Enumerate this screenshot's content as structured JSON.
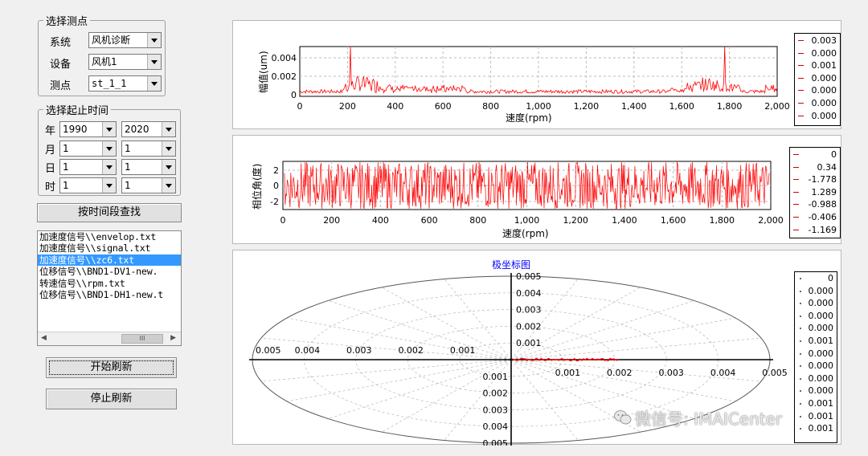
{
  "select_point": {
    "title": "选择测点",
    "system_label": "系统",
    "system_value": "风机诊断",
    "device_label": "设备",
    "device_value": "风机1",
    "point_label": "测点",
    "point_value": "st_1_1"
  },
  "time_range": {
    "title": "选择起止时间",
    "rows": [
      {
        "label": "年",
        "start": "1990",
        "end": "2020"
      },
      {
        "label": "月",
        "start": "1",
        "end": "1"
      },
      {
        "label": "日",
        "start": "1",
        "end": "1"
      },
      {
        "label": "时",
        "start": "1",
        "end": "1"
      }
    ]
  },
  "query_button": "按时间段查找",
  "files": [
    "加速度信号\\\\envelop.txt",
    "加速度信号\\\\signal.txt",
    "加速度信号\\\\zc6.txt",
    "位移信号\\\\BND1-DV1-new.",
    "转速信号\\\\rpm.txt",
    "位移信号\\\\BND1-DH1-new.t"
  ],
  "selected_file_index": 2,
  "scrollbar_thumb": "III",
  "start_button": "开始刷新",
  "stop_button": "停止刷新",
  "amp_chart": {
    "ylabel": "幅值(um)",
    "xlabel": "速度(rpm)",
    "y_ticks": [
      "0.004",
      "0.002",
      "0"
    ],
    "x_ticks": [
      "0",
      "200",
      "400",
      "600",
      "800",
      "1,000",
      "1,200",
      "1,400",
      "1,600",
      "1,800",
      "2,000"
    ],
    "legend": [
      "0.003",
      "0.000",
      "0.001",
      "0.000",
      "0.000",
      "0.000",
      "0.000"
    ],
    "line_color": "#ff0000"
  },
  "phase_chart": {
    "ylabel": "相位角(度)",
    "xlabel": "速度(rpm)",
    "y_ticks": [
      "2",
      "0",
      "-2"
    ],
    "x_ticks": [
      "0",
      "200",
      "400",
      "600",
      "800",
      "1,000",
      "1,200",
      "1,400",
      "1,600",
      "1,800",
      "2,000"
    ],
    "legend": [
      "0",
      "0.34",
      "-1.778",
      "1.289",
      "-0.988",
      "-0.406",
      "-1.169"
    ],
    "line_color": "#ff0000"
  },
  "polar_chart": {
    "title": "极坐标图",
    "x_tick_labels": [
      "0.005",
      "0.004",
      "0.003",
      "0.002",
      "0.001",
      "0.001",
      "0.002",
      "0.003",
      "0.004",
      "0.005"
    ],
    "y_up_labels": [
      "0.005",
      "0.004",
      "0.003",
      "0.002",
      "0.001"
    ],
    "y_down_labels": [
      "0.001",
      "0.002",
      "0.003",
      "0.004",
      "0.005"
    ],
    "legend": [
      "0",
      "0.000",
      "0.000",
      "0.000",
      "0.000",
      "0.001",
      "0.000",
      "0.000",
      "0.000",
      "0.000",
      "0.001",
      "0.001",
      "0.001"
    ],
    "title_color": "#0000ff"
  },
  "watermark": "微信号: IMAICenter"
}
